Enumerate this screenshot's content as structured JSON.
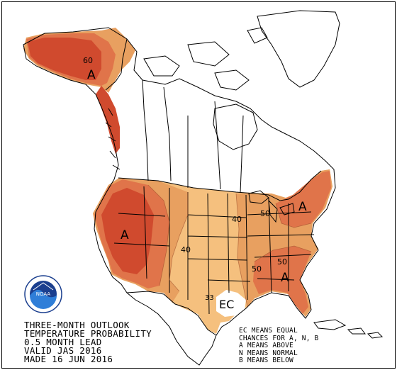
{
  "title_lines": [
    "THREE-MONTH OUTLOOK",
    "TEMPERATURE PROBABILITY",
    "0.5 MONTH LEAD",
    "VALID JAS 2016",
    "MADE 16 JUN 2016"
  ],
  "legend_notes": [
    "EC MEANS EQUAL",
    "CHANCES FOR A, N, B",
    "A MEANS ABOVE",
    "N MEANS NORMAL",
    "B MEANS BELOW"
  ],
  "logo": {
    "text": "NOAA",
    "ring_text": "NATIONAL OCEANIC AND ATMOSPHERIC ADMINISTRATION · U.S. DEPARTMENT OF COMMERCE"
  },
  "map_labels": {
    "alaska_category": "A",
    "alaska_contour": "60",
    "west_category": "A",
    "west_contour": "40",
    "northeast_category": "A",
    "northeast_contour": "50",
    "southeast_category": "A",
    "southeast_contour": "50",
    "central_contour": "40",
    "ohio_contour": "50",
    "texas_contour": "33",
    "ec_label": "EC"
  },
  "colors": {
    "above_33": "#f5c07e",
    "above_40": "#e8a060",
    "above_50": "#e0744a",
    "above_60": "#d04a2e",
    "above_70": "#c8381e",
    "ec": "#ffffff",
    "border": "#000000"
  }
}
